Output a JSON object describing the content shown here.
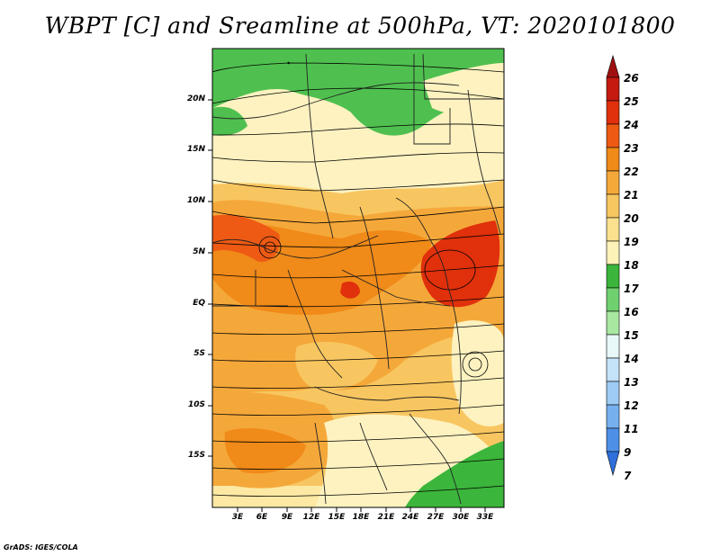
{
  "title": "WBPT [C] and Sreamline at 500hPa, VT: 2020101800",
  "footer": "GrADS: IGES/COLA",
  "axes": {
    "lat_labels": [
      "20N",
      "15N",
      "10N",
      "5N",
      "EQ",
      "5S",
      "10S",
      "15S"
    ],
    "lon_labels": [
      "3E",
      "6E",
      "9E",
      "12E",
      "15E",
      "18E",
      "21E",
      "24E",
      "27E",
      "30E",
      "33E"
    ]
  },
  "colorbar": {
    "labels": [
      "26",
      "25",
      "24",
      "23",
      "22",
      "21",
      "20",
      "19",
      "18",
      "17",
      "16",
      "15",
      "14",
      "13",
      "12",
      "11",
      "9",
      "7"
    ],
    "colors": [
      "#a01010",
      "#c41a10",
      "#e0300c",
      "#ee5a14",
      "#f08a18",
      "#f5a83a",
      "#f8c660",
      "#fbe08e",
      "#fdf2b8",
      "#3bb53b",
      "#6fd06f",
      "#a8e8a0",
      "#e8f8f8",
      "#c4e2f8",
      "#9ecbf4",
      "#76b0ee",
      "#4e90e8",
      "#2f6fdc"
    ]
  },
  "field": {
    "variable": "WBPT",
    "units": "C",
    "level": "500hPa",
    "valid_time": "2020101800",
    "regions": [
      "green",
      "pale-yellow",
      "yellow",
      "orange",
      "orange-red"
    ]
  }
}
